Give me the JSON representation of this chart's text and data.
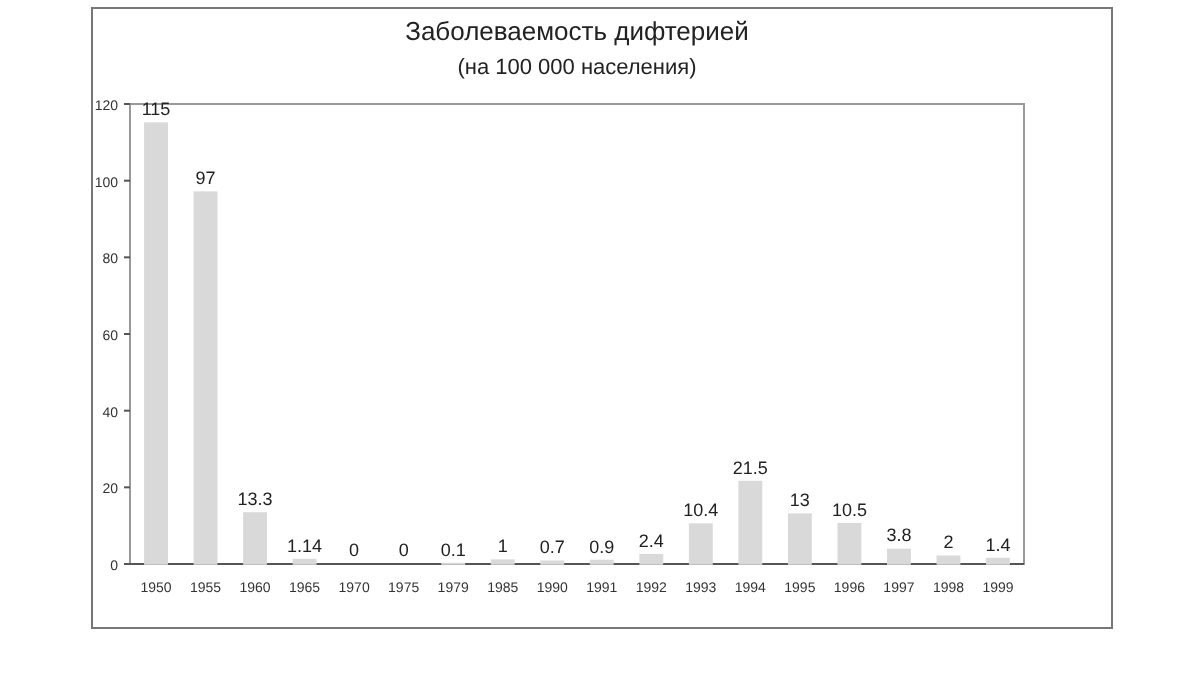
{
  "chart_data": {
    "type": "bar",
    "title": "Заболеваемость дифтерией",
    "subtitle": "(на 100 000 населения)",
    "categories": [
      "1950",
      "1955",
      "1960",
      "1965",
      "1970",
      "1975",
      "1979",
      "1985",
      "1990",
      "1991",
      "1992",
      "1993",
      "1994",
      "1995",
      "1996",
      "1997",
      "1998",
      "1999"
    ],
    "values": [
      115,
      97,
      13.3,
      1.14,
      0,
      0,
      0.1,
      1,
      0.7,
      0.9,
      2.4,
      10.4,
      21.5,
      13,
      10.5,
      3.8,
      2,
      1.4
    ],
    "color": "#d9d9d9",
    "ylim": [
      0,
      120
    ],
    "yticks": [
      0,
      20,
      40,
      60,
      80,
      100,
      120
    ],
    "data_labels": true,
    "grid": false
  }
}
